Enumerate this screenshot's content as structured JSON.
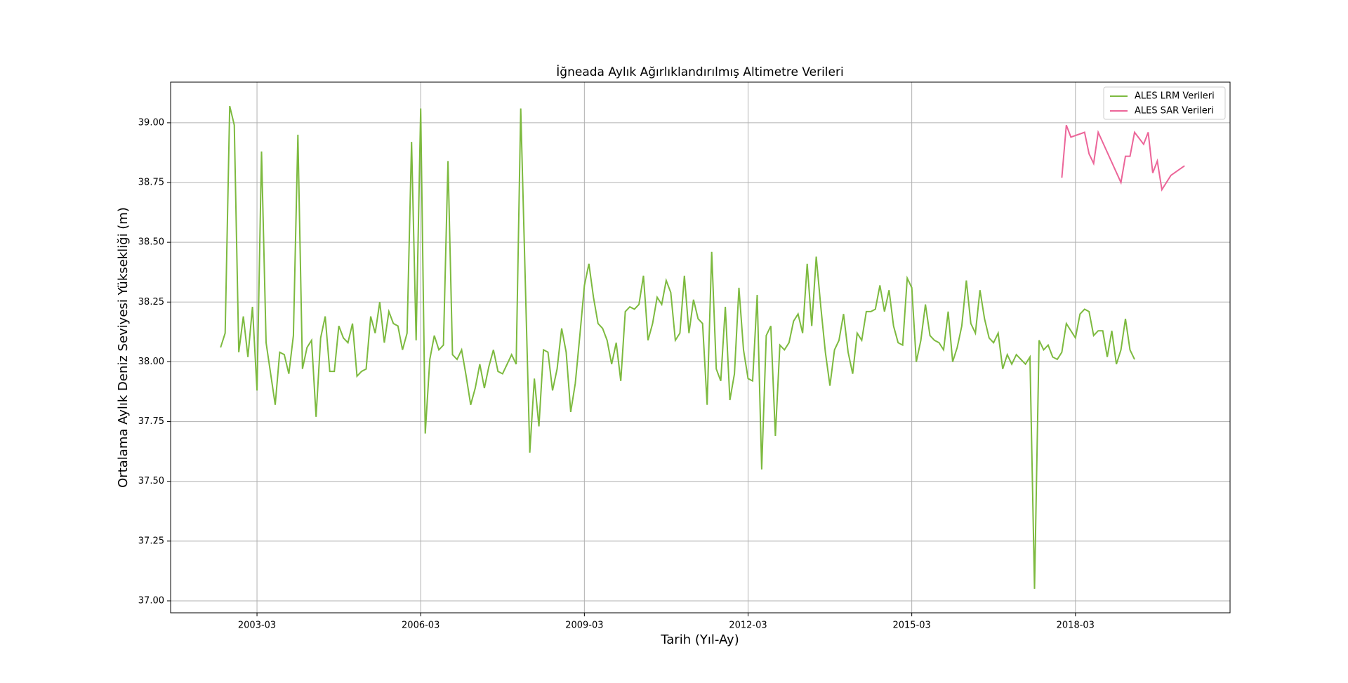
{
  "chart_data": {
    "type": "line",
    "title": "İğneada Aylık Ağırlıklandırılmış Altimetre Verileri",
    "x_label": "Tarih (Yıl-Ay)",
    "y_label": "Ortalama Aylık Deniz Seviyesi Yüksekliği (m)",
    "xlim": [
      "2001-08",
      "2021-01"
    ],
    "xticks": [
      "2003-03",
      "2006-03",
      "2009-03",
      "2012-03",
      "2015-03",
      "2018-03"
    ],
    "ylim": [
      36.95,
      39.17
    ],
    "yticks": [
      {
        "value": 37,
        "label": "37.00"
      },
      {
        "value": 37.25,
        "label": "37.25"
      },
      {
        "value": 37.5,
        "label": "37.50"
      },
      {
        "value": 37.75,
        "label": "37.75"
      },
      {
        "value": 38,
        "label": "38.00"
      },
      {
        "value": 38.25,
        "label": "38.25"
      },
      {
        "value": 38.5,
        "label": "38.50"
      },
      {
        "value": 38.75,
        "label": "38.75"
      },
      {
        "value": 39,
        "label": "39.00"
      }
    ],
    "grid": true,
    "legend": "upper right",
    "series": [
      {
        "name": "ALES LRM Verileri",
        "color": "#7dba3f",
        "x": [
          "2002-07",
          "2002-08",
          "2002-09",
          "2002-10",
          "2002-11",
          "2002-12",
          "2003-01",
          "2003-02",
          "2003-03",
          "2003-04",
          "2003-05",
          "2003-06",
          "2003-07",
          "2003-08",
          "2003-09",
          "2003-10",
          "2003-11",
          "2003-12",
          "2004-01",
          "2004-02",
          "2004-03",
          "2004-04",
          "2004-05",
          "2004-06",
          "2004-07",
          "2004-08",
          "2004-09",
          "2004-10",
          "2004-11",
          "2004-12",
          "2005-01",
          "2005-02",
          "2005-03",
          "2005-04",
          "2005-05",
          "2005-06",
          "2005-07",
          "2005-08",
          "2005-09",
          "2005-10",
          "2005-11",
          "2005-12",
          "2006-01",
          "2006-02",
          "2006-03",
          "2006-04",
          "2006-05",
          "2006-06",
          "2006-07",
          "2006-08",
          "2006-09",
          "2006-10",
          "2006-11",
          "2006-12",
          "2007-01",
          "2007-02",
          "2007-03",
          "2007-04",
          "2007-05",
          "2007-06",
          "2007-07",
          "2007-08",
          "2007-09",
          "2007-10",
          "2007-11",
          "2007-12",
          "2008-01",
          "2008-03",
          "2008-04",
          "2008-05",
          "2008-06",
          "2008-07",
          "2008-08",
          "2008-09",
          "2008-10",
          "2008-11",
          "2008-12",
          "2009-01",
          "2009-02",
          "2009-03",
          "2009-04",
          "2009-05",
          "2009-06",
          "2009-07",
          "2009-08",
          "2009-09",
          "2009-10",
          "2009-11",
          "2009-12",
          "2010-01",
          "2010-02",
          "2010-03",
          "2010-04",
          "2010-05",
          "2010-06",
          "2010-07",
          "2010-08",
          "2010-09",
          "2010-10",
          "2010-11",
          "2010-12",
          "2011-01",
          "2011-02",
          "2011-03",
          "2011-04",
          "2011-05",
          "2011-06",
          "2011-07",
          "2011-08",
          "2011-09",
          "2011-10",
          "2011-11",
          "2011-12",
          "2012-01",
          "2012-02",
          "2012-03",
          "2012-04",
          "2012-05",
          "2012-06",
          "2012-07",
          "2012-08",
          "2012-09",
          "2012-10",
          "2012-11",
          "2012-12",
          "2013-01",
          "2013-02",
          "2013-03",
          "2013-04",
          "2013-05",
          "2013-06",
          "2013-07",
          "2013-08",
          "2013-09",
          "2013-10",
          "2013-11",
          "2013-12",
          "2014-01",
          "2014-02",
          "2014-03",
          "2014-04",
          "2014-05",
          "2014-06",
          "2014-07",
          "2014-08",
          "2014-09",
          "2014-10",
          "2014-11",
          "2014-12",
          "2015-01",
          "2015-02",
          "2015-03",
          "2015-04",
          "2015-05",
          "2015-06",
          "2015-07",
          "2015-08",
          "2015-09",
          "2015-10",
          "2015-11",
          "2015-12",
          "2016-01",
          "2016-02",
          "2016-03",
          "2016-04",
          "2016-05",
          "2016-06",
          "2016-07",
          "2016-08",
          "2016-09",
          "2016-10",
          "2016-11",
          "2016-12",
          "2017-01",
          "2017-02",
          "2017-03",
          "2017-04",
          "2017-05",
          "2017-06",
          "2017-07",
          "2017-08",
          "2017-09",
          "2017-10",
          "2017-11",
          "2017-12",
          "2018-01",
          "2018-02",
          "2018-03",
          "2018-04",
          "2018-05",
          "2018-06",
          "2018-07",
          "2018-08",
          "2018-09",
          "2018-10",
          "2018-11",
          "2018-12",
          "2019-01",
          "2019-02",
          "2019-03",
          "2019-04"
        ],
        "values": [
          38.06,
          38.12,
          39.07,
          38.99,
          38.04,
          38.19,
          38.02,
          38.23,
          37.88,
          38.88,
          38.08,
          37.95,
          37.82,
          38.04,
          38.03,
          37.95,
          38.11,
          38.95,
          37.97,
          38.06,
          38.09,
          37.77,
          38.1,
          38.19,
          37.96,
          37.96,
          38.15,
          38.1,
          38.08,
          38.16,
          37.94,
          37.96,
          37.97,
          38.19,
          38.12,
          38.25,
          38.08,
          38.21,
          38.16,
          38.15,
          38.05,
          38.12,
          38.92,
          38.09,
          39.06,
          37.7,
          38.01,
          38.11,
          38.05,
          38.07,
          38.84,
          38.03,
          38.01,
          38.05,
          37.94,
          37.82,
          37.89,
          37.99,
          37.89,
          37.98,
          38.05,
          37.96,
          37.95,
          37.99,
          38.03,
          37.99,
          39.06,
          37.62,
          37.93,
          37.73,
          38.05,
          38.04,
          37.88,
          37.97,
          38.14,
          38.04,
          37.79,
          37.91,
          38.11,
          38.32,
          38.41,
          38.27,
          38.16,
          38.14,
          38.09,
          37.99,
          38.08,
          37.92,
          38.21,
          38.23,
          38.22,
          38.24,
          38.36,
          38.09,
          38.16,
          38.27,
          38.24,
          38.34,
          38.29,
          38.09,
          38.12,
          38.36,
          38.12,
          38.26,
          38.18,
          38.16,
          37.82,
          38.46,
          37.97,
          37.92,
          38.23,
          37.84,
          37.95,
          38.31,
          38.05,
          37.93,
          37.92,
          38.28,
          37.55,
          38.11,
          38.15,
          37.69,
          38.07,
          38.05,
          38.08,
          38.17,
          38.2,
          38.12,
          38.41,
          38.15,
          38.44,
          38.23,
          38.04,
          37.9,
          38.05,
          38.09,
          38.2,
          38.04,
          37.95,
          38.12,
          38.09,
          38.21,
          38.21,
          38.22,
          38.32,
          38.21,
          38.3,
          38.15,
          38.08,
          38.07,
          38.35,
          38.31,
          38.0,
          38.09,
          38.24,
          38.11,
          38.09,
          38.08,
          38.05,
          38.21,
          38.0,
          38.06,
          38.15,
          38.34,
          38.16,
          38.12,
          38.3,
          38.18,
          38.1,
          38.08,
          38.12,
          37.97,
          38.03,
          37.99,
          38.03,
          38.01,
          37.99,
          38.02,
          37.05,
          38.09,
          38.05,
          38.07,
          38.02,
          38.01,
          38.04,
          38.16,
          38.13,
          38.1,
          38.2,
          38.22,
          38.21,
          38.11,
          38.13,
          38.13,
          38.02,
          38.13,
          37.99,
          38.05,
          38.18,
          38.05,
          38.01
        ]
      },
      {
        "name": "ALES SAR Verileri",
        "color": "#ec6599",
        "x": [
          "2017-12",
          "2018-01",
          "2018-02",
          "2018-05",
          "2018-06",
          "2018-07",
          "2018-08",
          "2019-01",
          "2019-02",
          "2019-03",
          "2019-04",
          "2019-06",
          "2019-07",
          "2019-08",
          "2019-09",
          "2019-10",
          "2019-12",
          "2020-03"
        ],
        "values": [
          38.77,
          38.99,
          38.94,
          38.96,
          38.87,
          38.83,
          38.96,
          38.75,
          38.86,
          38.86,
          38.96,
          38.91,
          38.96,
          38.79,
          38.84,
          38.72,
          38.78,
          38.82
        ]
      }
    ]
  }
}
